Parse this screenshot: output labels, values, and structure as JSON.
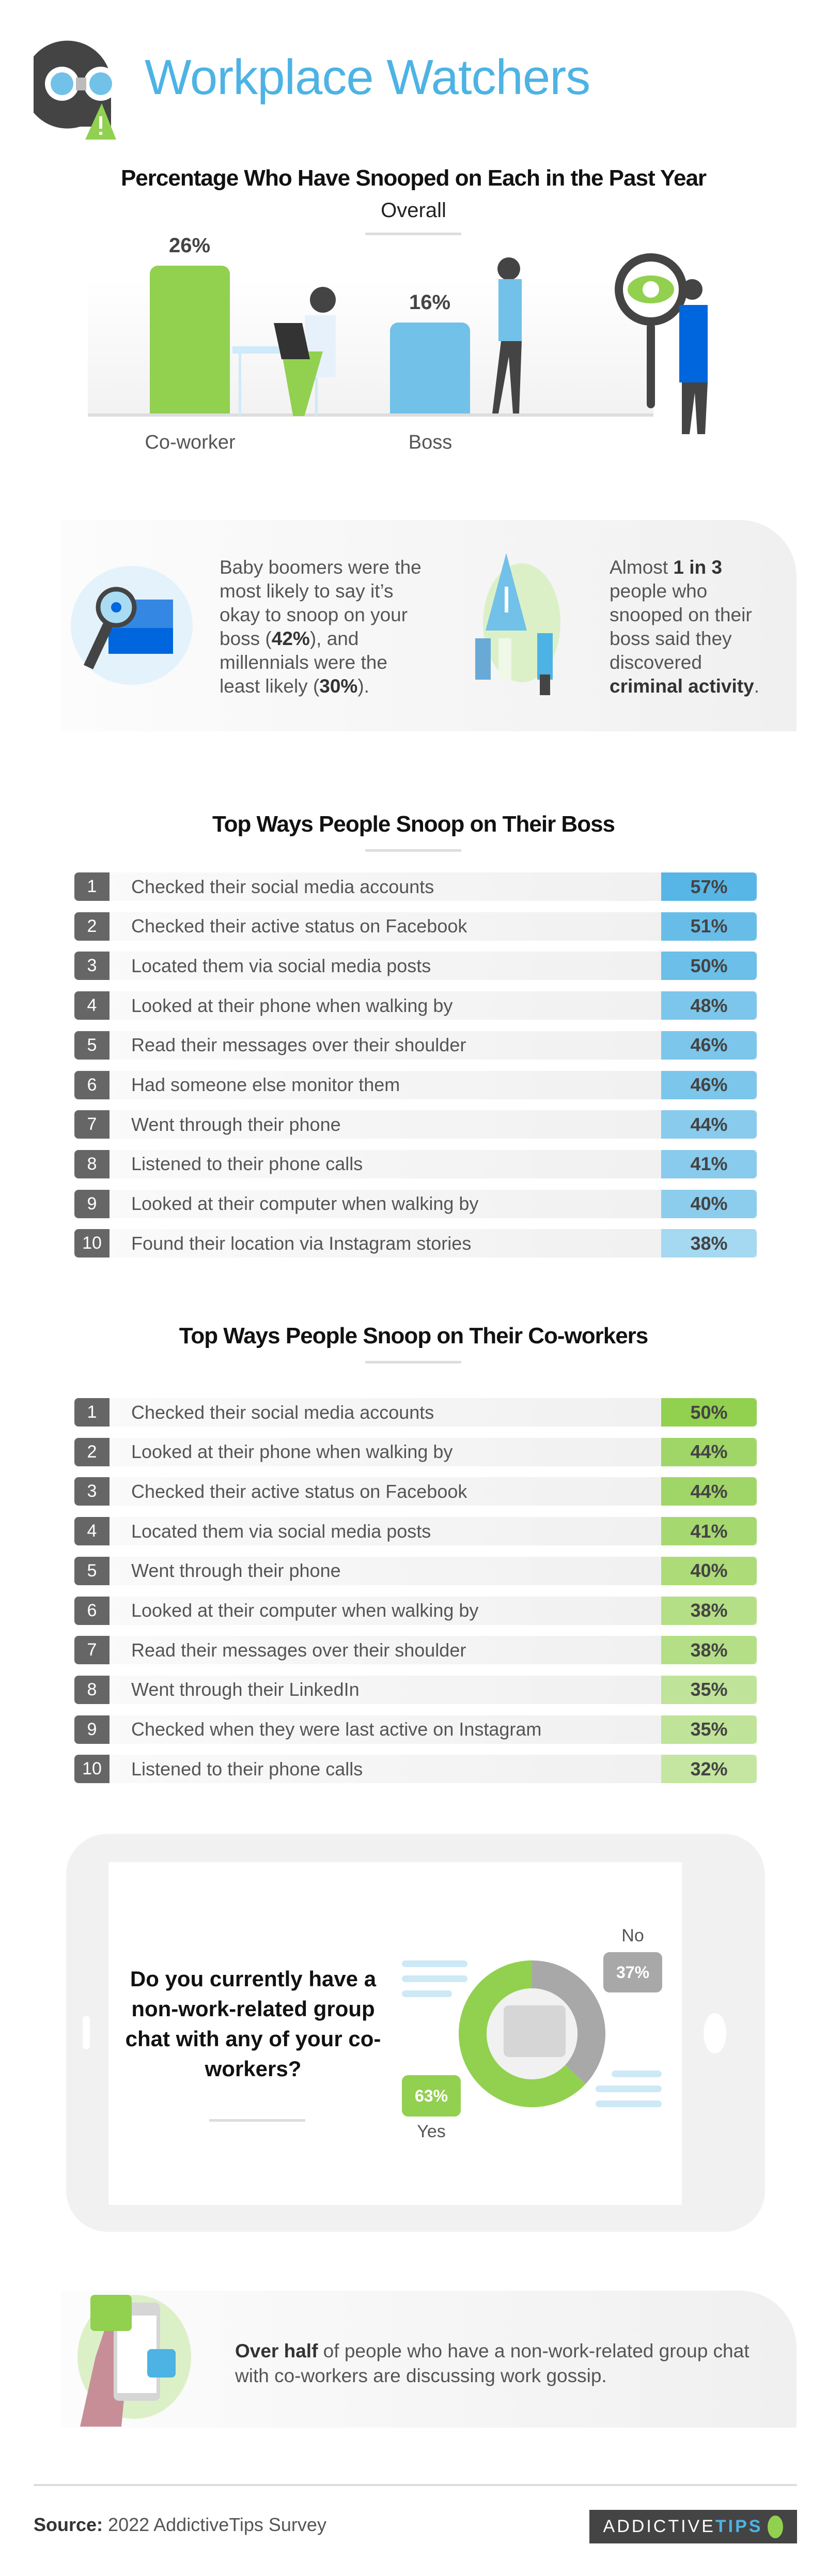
{
  "header": {
    "title": "Workplace Watchers",
    "logo_icon": "binoculars-warning-icon"
  },
  "overall_chart": {
    "chart_data": {
      "type": "bar",
      "title": "Percentage Who Have Snooped on Each in the Past Year",
      "subtitle": "Overall",
      "categories": [
        "Co-worker",
        "Boss"
      ],
      "values": [
        26,
        16
      ],
      "value_labels": [
        "26%",
        "16%"
      ],
      "colors": [
        "#92d050",
        "#71c1e8"
      ],
      "ylim": [
        0,
        30
      ]
    }
  },
  "stats": {
    "boomers": {
      "pre": "Baby boomers were the most likely to say it’s okay to snoop on your boss (",
      "b1": "42%",
      "mid": "), and millennials were the least likely (",
      "b2": "30%",
      "post": ")."
    },
    "criminal": {
      "pre": "Almost ",
      "b1": "1 in 3",
      "mid": " people who snooped on their boss said they discovered ",
      "b2": "criminal activity",
      "post": "."
    }
  },
  "boss": {
    "title": "Top Ways People Snoop on Their Boss",
    "rows": [
      {
        "rank": "1",
        "label": "Checked their social media accounts",
        "value": "57%"
      },
      {
        "rank": "2",
        "label": "Checked their active status on Facebook",
        "value": "51%"
      },
      {
        "rank": "3",
        "label": "Located them via social media posts",
        "value": "50%"
      },
      {
        "rank": "4",
        "label": "Looked at their phone when walking by",
        "value": "48%"
      },
      {
        "rank": "5",
        "label": "Read their messages over their shoulder",
        "value": "46%"
      },
      {
        "rank": "6",
        "label": "Had someone else monitor them",
        "value": "46%"
      },
      {
        "rank": "7",
        "label": "Went through their phone",
        "value": "44%"
      },
      {
        "rank": "8",
        "label": "Listened to their phone calls",
        "value": "41%"
      },
      {
        "rank": "9",
        "label": "Looked at their computer when walking by",
        "value": "40%"
      },
      {
        "rank": "10",
        "label": "Found their location via Instagram stories",
        "value": "38%"
      }
    ]
  },
  "coworker": {
    "title": "Top Ways People Snoop on Their Co-workers",
    "rows": [
      {
        "rank": "1",
        "label": "Checked their social media accounts",
        "value": "50%"
      },
      {
        "rank": "2",
        "label": "Looked at their phone when walking by",
        "value": "44%"
      },
      {
        "rank": "3",
        "label": "Checked their active status on Facebook",
        "value": "44%"
      },
      {
        "rank": "4",
        "label": "Located them via social media posts",
        "value": "41%"
      },
      {
        "rank": "5",
        "label": "Went through their phone",
        "value": "40%"
      },
      {
        "rank": "6",
        "label": "Looked at their computer when walking by",
        "value": "38%"
      },
      {
        "rank": "7",
        "label": "Read their messages over their shoulder",
        "value": "38%"
      },
      {
        "rank": "8",
        "label": "Went through their LinkedIn",
        "value": "35%"
      },
      {
        "rank": "9",
        "label": "Checked when they were last active on Instagram",
        "value": "35%"
      },
      {
        "rank": "10",
        "label": "Listened to their phone calls",
        "value": "32%"
      }
    ]
  },
  "group_chat": {
    "question": "Do you currently have a non-work-related group chat with any of your co-workers?",
    "chart_data": {
      "type": "pie",
      "categories": [
        "Yes",
        "No"
      ],
      "values": [
        63,
        37
      ],
      "value_labels": [
        "63%",
        "37%"
      ],
      "colors": [
        "#92d050",
        "#a8a8a8"
      ]
    }
  },
  "gossip": {
    "bold": "Over half",
    "rest": " of people who have a non-work-related group chat with co-workers are discussing work gossip."
  },
  "footer": {
    "source_label": "Source:",
    "source_text": " 2022 AddictiveTips Survey",
    "brand_a": "ADDICTIVE",
    "brand_b": "TIPS"
  }
}
